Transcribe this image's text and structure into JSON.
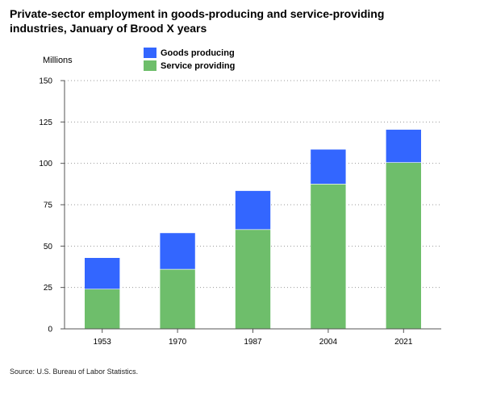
{
  "chart_data": {
    "type": "bar",
    "stacked": true,
    "title": "Private-sector employment in goods-producing and service-providing industries, January of Brood X years",
    "title_lines": [
      "Private-sector employment in goods-producing and service-providing",
      "industries, January of Brood X years"
    ],
    "ylabel": "Millions",
    "xlabel": "",
    "categories": [
      "1953",
      "1970",
      "1987",
      "2004",
      "2021"
    ],
    "series": [
      {
        "name": "Service providing",
        "values": [
          24,
          36,
          60,
          87.5,
          100.5
        ],
        "color": "#6ebe6b"
      },
      {
        "name": "Goods producing",
        "values": [
          19,
          22,
          23.5,
          21,
          20
        ],
        "color": "#3366ff"
      }
    ],
    "legend_order": [
      1,
      0
    ],
    "legend_position": "top",
    "ylim": [
      0,
      150
    ],
    "yticks": [
      0,
      25,
      50,
      75,
      100,
      125,
      150
    ],
    "grid": true,
    "source": "Source: U.S. Bureau of Labor Statistics."
  }
}
